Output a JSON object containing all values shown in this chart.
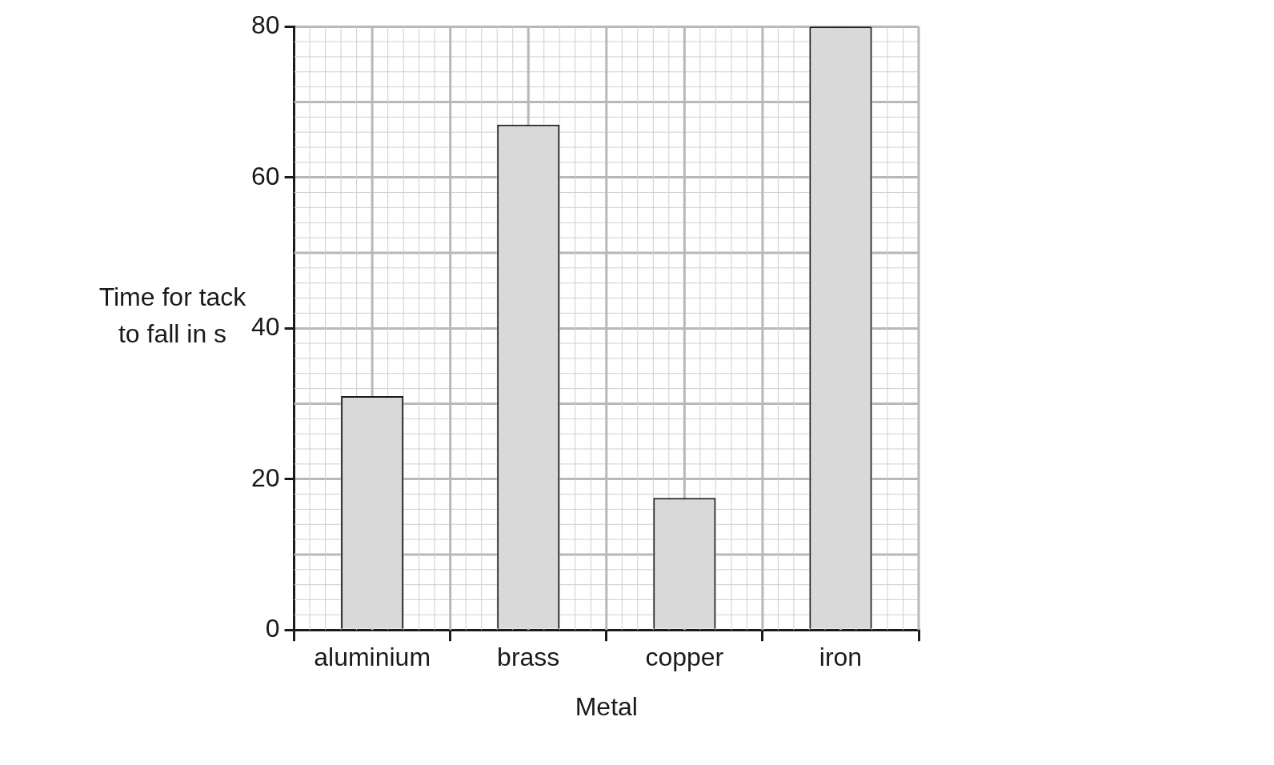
{
  "chart_data": {
    "type": "bar",
    "xlabel": "Metal",
    "ylabel": "Time for tack to fall in s",
    "categories": [
      "aluminium",
      "brass",
      "copper",
      "iron"
    ],
    "values": [
      31,
      67,
      17.5,
      80
    ],
    "color": "#d9d9d9",
    "ylim": [
      0,
      80
    ],
    "yticks": [
      0,
      20,
      40,
      60,
      80
    ],
    "grid": true,
    "legend": false
  }
}
